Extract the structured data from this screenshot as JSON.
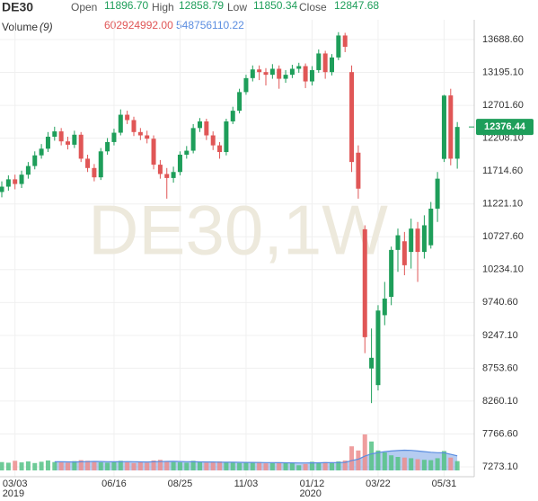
{
  "chart_data": {
    "type": "candlestick",
    "title": "DE30",
    "watermark": "DE30,1W",
    "header": {
      "open_label": "Open",
      "open": {
        "value": 11896.7,
        "label": "11896.70"
      },
      "high_label": "High",
      "high": 12858.79,
      "low_label": "Low",
      "low": 11850.34,
      "close_label": "Close",
      "close": 12847.68,
      "volume_label": "Volume",
      "volume_period": {
        "value": 9,
        "label": "(9)"
      },
      "volume": {
        "value": 602924992,
        "label": "602924992.00"
      },
      "volume_ma": 548756110.22
    },
    "last_price": 12376.44,
    "categories": [
      null,
      null,
      "03/03",
      null,
      null,
      null,
      null,
      null,
      null,
      null,
      null,
      null,
      null,
      null,
      null,
      null,
      null,
      "06/16",
      null,
      null,
      null,
      null,
      null,
      null,
      null,
      null,
      null,
      "08/25",
      null,
      null,
      null,
      null,
      null,
      null,
      null,
      null,
      null,
      "11/03",
      null,
      null,
      null,
      null,
      null,
      null,
      null,
      null,
      null,
      "01/12",
      null,
      null,
      null,
      null,
      null,
      null,
      null,
      null,
      null,
      "03/22",
      null,
      null,
      null,
      null,
      null,
      null,
      null,
      null,
      null,
      "05/31",
      null,
      null
    ],
    "year_labels": {
      "03/03": "2019",
      "01/12": "2020"
    },
    "open": [
      11400,
      11480,
      11590,
      11520,
      11660,
      11790,
      11950,
      12050,
      12230,
      12310,
      12160,
      12110,
      12260,
      11900,
      11760,
      11620,
      12010,
      12150,
      12290,
      12560,
      12480,
      12300,
      12250,
      12200,
      11810,
      11670,
      11610,
      11700,
      11960,
      12020,
      12360,
      12460,
      12250,
      12100,
      12000,
      12460,
      12620,
      12900,
      13110,
      13240,
      13200,
      13160,
      13250,
      13100,
      13160,
      13250,
      13290,
      13060,
      13230,
      13480,
      13200,
      13420,
      13750,
      13200,
      11990,
      10840,
      8750,
      8500,
      9550,
      9825,
      10530,
      10660,
      10500,
      10850,
      10500,
      10600,
      11150,
      11896.7,
      12850,
      11900
    ],
    "high": [
      11560,
      11650,
      11660,
      11720,
      11850,
      12010,
      12120,
      12300,
      12380,
      12360,
      12230,
      12320,
      12300,
      11960,
      11820,
      12060,
      12210,
      12350,
      12640,
      12620,
      12530,
      12360,
      12320,
      12250,
      11880,
      11760,
      11780,
      12010,
      12090,
      12420,
      12510,
      12500,
      12310,
      12150,
      12500,
      12680,
      12950,
      13160,
      13300,
      13300,
      13260,
      13320,
      13300,
      13230,
      13310,
      13340,
      13330,
      13290,
      13540,
      13520,
      13470,
      13800,
      13790,
      13300,
      12100,
      10900,
      9350,
      9700,
      10050,
      10580,
      10850,
      10800,
      11000,
      10950,
      11050,
      11250,
      11700,
      12858.79,
      12950,
      12450
    ],
    "low": [
      11320,
      11420,
      11440,
      11460,
      11600,
      11740,
      11900,
      12000,
      12170,
      12100,
      12040,
      12060,
      11850,
      11700,
      11560,
      11580,
      11960,
      12100,
      12250,
      12420,
      12240,
      12180,
      12130,
      11740,
      11600,
      11300,
      11540,
      11650,
      11900,
      11980,
      12300,
      12180,
      12030,
      11900,
      11950,
      12420,
      12580,
      12860,
      13060,
      13080,
      13000,
      13100,
      12950,
      13040,
      13110,
      13190,
      12960,
      13000,
      13190,
      13100,
      13150,
      13380,
      13500,
      11700,
      11300,
      8980,
      8230,
      8420,
      9400,
      9700,
      10200,
      10150,
      10250,
      10050,
      10400,
      10550,
      10950,
      11850.34,
      11800,
      11750
    ],
    "close": [
      11480,
      11590,
      11520,
      11660,
      11790,
      11950,
      12050,
      12230,
      12310,
      12160,
      12110,
      12260,
      11900,
      11760,
      11620,
      12010,
      12150,
      12290,
      12560,
      12480,
      12300,
      12250,
      12200,
      11810,
      11670,
      11610,
      11700,
      11960,
      12020,
      12360,
      12460,
      12250,
      12100,
      12000,
      12460,
      12620,
      12900,
      13110,
      13240,
      13200,
      13160,
      13250,
      13100,
      13160,
      13250,
      13290,
      13060,
      13230,
      13480,
      13200,
      13420,
      13750,
      13580,
      11850,
      11450,
      9220,
      8910,
      9620,
      9800,
      10530,
      10750,
      10300,
      10850,
      10500,
      10900,
      11150,
      11600,
      12847.68,
      11900,
      12376.44
    ],
    "up_color": "#1e9e5a",
    "down_color": "#e05656",
    "ylim": [
      7124.7,
      13985.7
    ],
    "yticks": [
      {
        "value": 13688.6,
        "label": "13688.60"
      },
      {
        "value": 13195.1,
        "label": "13195.10"
      },
      {
        "value": 12701.6,
        "label": "12701.60"
      },
      {
        "value": 12208.1,
        "label": "12208.10"
      },
      {
        "value": 11714.6,
        "label": "11714.60"
      },
      {
        "value": 11221.1,
        "label": "11221.10"
      },
      {
        "value": 10727.6,
        "label": "10727.60"
      },
      {
        "value": 10234.1,
        "label": "10234.10"
      },
      {
        "value": 9740.6,
        "label": "9740.60"
      },
      {
        "value": 9247.1,
        "label": "9247.10"
      },
      {
        "value": 8753.6,
        "label": "8753.60"
      },
      {
        "value": 8260.1,
        "label": "8260.10"
      },
      {
        "value": 7766.6,
        "label": "7766.60"
      },
      {
        "value": 7273.1,
        "label": "7273.10"
      }
    ],
    "grid": true,
    "volume": {
      "ylim": [
        0,
        1400000000
      ],
      "up_color": "#55c285",
      "down_color": "#ec8d8d",
      "ma_color": "#5b8de0",
      "values": [
        260000000,
        240000000,
        300000000,
        250000000,
        280000000,
        230000000,
        270000000,
        310000000,
        260000000,
        250000000,
        240000000,
        290000000,
        320000000,
        300000000,
        260000000,
        250000000,
        240000000,
        280000000,
        300000000,
        250000000,
        230000000,
        260000000,
        240000000,
        310000000,
        330000000,
        290000000,
        260000000,
        250000000,
        240000000,
        300000000,
        260000000,
        240000000,
        250000000,
        280000000,
        260000000,
        240000000,
        230000000,
        250000000,
        240000000,
        260000000,
        220000000,
        230000000,
        250000000,
        240000000,
        230000000,
        160000000,
        200000000,
        270000000,
        250000000,
        260000000,
        240000000,
        280000000,
        310000000,
        750000000,
        620000000,
        1120000000,
        900000000,
        620000000,
        560000000,
        470000000,
        420000000,
        400000000,
        380000000,
        350000000,
        330000000,
        320000000,
        380000000,
        602924992,
        400000000,
        290000000
      ],
      "ma": [
        null,
        null,
        null,
        null,
        null,
        null,
        null,
        null,
        270000000,
        268000000,
        265000000,
        263000000,
        270000000,
        275000000,
        280000000,
        278000000,
        272000000,
        268000000,
        270000000,
        275000000,
        272000000,
        265000000,
        262000000,
        268000000,
        275000000,
        280000000,
        282000000,
        278000000,
        272000000,
        268000000,
        265000000,
        263000000,
        262000000,
        258000000,
        255000000,
        255000000,
        253000000,
        250000000,
        248000000,
        247000000,
        245000000,
        243000000,
        240000000,
        238000000,
        235000000,
        233000000,
        232000000,
        235000000,
        238000000,
        240000000,
        242000000,
        245000000,
        250000000,
        305000000,
        350000000,
        445000000,
        515000000,
        555000000,
        585000000,
        605000000,
        620000000,
        630000000,
        625000000,
        605000000,
        585000000,
        565000000,
        552000000,
        548756110.22,
        500000000,
        455000000
      ]
    }
  }
}
